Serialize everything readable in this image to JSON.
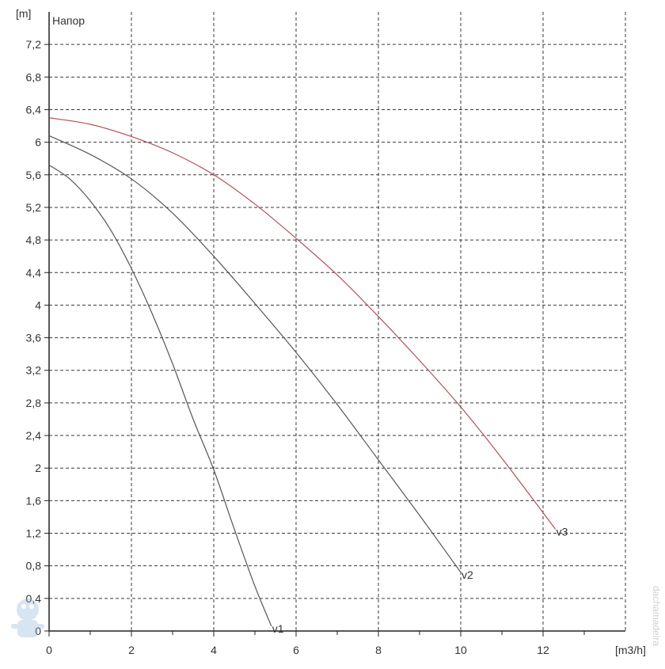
{
  "chart_data": {
    "type": "line",
    "title": "Напор",
    "ylabel": "[m]",
    "xlabel": "[m3/h]",
    "xlim": [
      0,
      14
    ],
    "ylim": [
      0,
      7.6
    ],
    "x_ticks": [
      0,
      2,
      4,
      6,
      8,
      10,
      12
    ],
    "x_tick_labels": [
      "0",
      "2",
      "4",
      "6",
      "8",
      "10",
      "12"
    ],
    "x_minor_step": 1,
    "y_ticks": [
      0,
      0.4,
      0.8,
      1.2,
      1.6,
      2,
      2.4,
      2.8,
      3.2,
      3.6,
      4,
      4.4,
      4.8,
      5.2,
      5.6,
      6,
      6.4,
      6.8,
      7.2
    ],
    "y_tick_labels": [
      "0",
      "0,4",
      "0,8",
      "1,2",
      "1,6",
      "2",
      "2,4",
      "2,8",
      "3,2",
      "3,6",
      "4",
      "4,4",
      "4,8",
      "5,2",
      "5,6",
      "6",
      "6,4",
      "6,8",
      "7,2"
    ],
    "grid": true,
    "grid_style": "dashed",
    "series": [
      {
        "name": "v1",
        "color": "#555555",
        "x": [
          0,
          0.5,
          1,
          1.5,
          2,
          2.5,
          3,
          3.5,
          4,
          4.5,
          5,
          5.4
        ],
        "y": [
          5.72,
          5.55,
          5.28,
          4.92,
          4.45,
          3.9,
          3.28,
          2.6,
          1.98,
          1.25,
          0.55,
          0.06
        ]
      },
      {
        "name": "v2",
        "color": "#555555",
        "x": [
          0,
          1,
          2,
          3,
          4,
          5,
          6,
          7,
          8,
          9,
          10
        ],
        "y": [
          6.08,
          5.85,
          5.55,
          5.13,
          4.6,
          4.02,
          3.42,
          2.78,
          2.1,
          1.42,
          0.72
        ]
      },
      {
        "name": "v3",
        "color": "#b0505a",
        "x": [
          0,
          1,
          2,
          3,
          4,
          5,
          6,
          7,
          8,
          9,
          10,
          11,
          12.3
        ],
        "y": [
          6.3,
          6.22,
          6.07,
          5.87,
          5.6,
          5.24,
          4.82,
          4.37,
          3.86,
          3.32,
          2.75,
          2.12,
          1.25
        ]
      }
    ],
    "annotations": [
      {
        "text": "v1",
        "series": "v1"
      },
      {
        "text": "v2",
        "series": "v2"
      },
      {
        "text": "v3",
        "series": "v3"
      }
    ]
  },
  "watermark": {
    "text": "dachamadeira",
    "icon": "plumber-mascot-icon"
  }
}
